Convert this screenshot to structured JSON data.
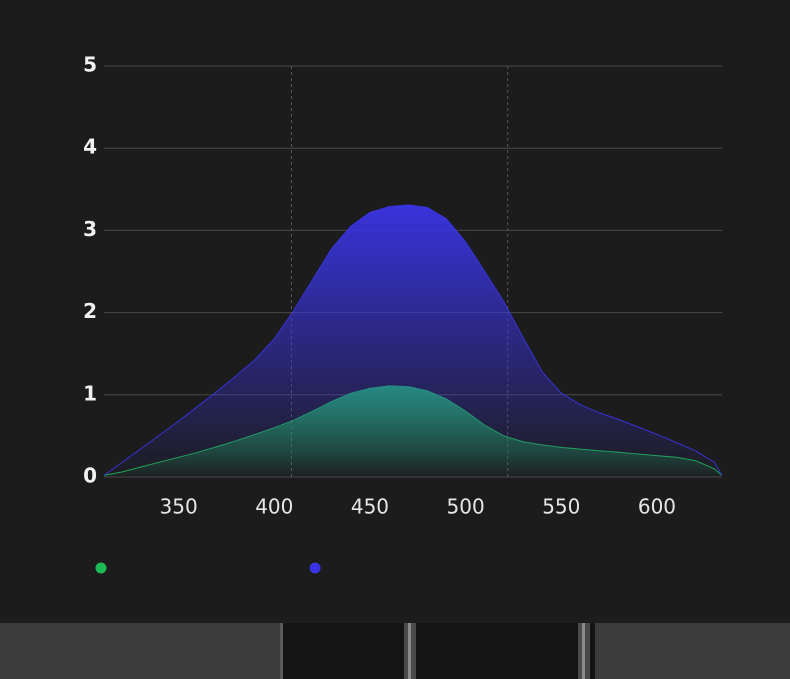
{
  "chart_data": {
    "type": "area",
    "x": [
      311,
      320,
      330,
      340,
      350,
      360,
      370,
      380,
      390,
      400,
      410,
      420,
      430,
      440,
      450,
      460,
      470,
      480,
      490,
      500,
      510,
      520,
      530,
      540,
      550,
      560,
      570,
      580,
      590,
      600,
      610,
      620,
      630,
      634
    ],
    "series": [
      {
        "color": "#1db954",
        "values": [
          0.02,
          0.06,
          0.12,
          0.18,
          0.24,
          0.3,
          0.37,
          0.44,
          0.52,
          0.6,
          0.69,
          0.8,
          0.92,
          1.02,
          1.08,
          1.11,
          1.1,
          1.05,
          0.95,
          0.8,
          0.63,
          0.5,
          0.43,
          0.39,
          0.36,
          0.34,
          0.32,
          0.3,
          0.28,
          0.26,
          0.24,
          0.2,
          0.1,
          0.02
        ]
      },
      {
        "color": "#3a34e6",
        "values": [
          0.02,
          0.17,
          0.34,
          0.51,
          0.68,
          0.86,
          1.04,
          1.23,
          1.43,
          1.68,
          2.02,
          2.4,
          2.78,
          3.05,
          3.22,
          3.29,
          3.31,
          3.28,
          3.14,
          2.86,
          2.5,
          2.13,
          1.7,
          1.28,
          1.02,
          0.88,
          0.78,
          0.7,
          0.61,
          0.52,
          0.42,
          0.32,
          0.18,
          0.02
        ]
      }
    ],
    "xlim": [
      311,
      634
    ],
    "xticks": [
      350,
      400,
      450,
      500,
      550,
      600
    ],
    "ylim": [
      0,
      5
    ],
    "yticks": [
      0,
      1,
      2,
      3,
      4,
      5
    ],
    "vlines": [
      409,
      522
    ],
    "grid": true
  }
}
